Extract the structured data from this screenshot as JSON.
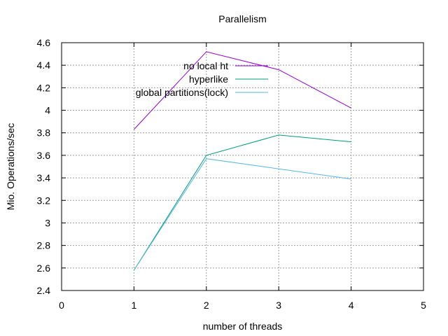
{
  "chart_data": {
    "type": "line",
    "title": "Parallelism",
    "xlabel": "number of threads",
    "ylabel": "Mio. Operations/sec",
    "xlim": [
      0,
      5
    ],
    "ylim": [
      2.4,
      4.6
    ],
    "xticks": [
      0,
      1,
      2,
      3,
      4,
      5
    ],
    "yticks": [
      2.4,
      2.6,
      2.8,
      3,
      3.2,
      3.4,
      3.6,
      3.8,
      4,
      4.2,
      4.4,
      4.6
    ],
    "xtick_labels": [
      "0",
      "1",
      "2",
      "3",
      "4",
      "5"
    ],
    "ytick_labels": [
      "2.4",
      "2.6",
      "2.8",
      "3",
      "3.2",
      "3.4",
      "3.6",
      "3.8",
      "4",
      "4.2",
      "4.4",
      "4.6"
    ],
    "grid": true,
    "legend_position": "top-center",
    "series": [
      {
        "name": "no local ht",
        "color": "#9400d3",
        "x": [
          1,
          2,
          3,
          4
        ],
        "y": [
          3.83,
          4.52,
          4.36,
          4.02
        ]
      },
      {
        "name": "hyperlike",
        "color": "#009e73",
        "x": [
          1,
          2,
          3,
          4
        ],
        "y": [
          2.58,
          3.6,
          3.78,
          3.72
        ]
      },
      {
        "name": "global partitions(lock)",
        "color": "#56b4e9",
        "x": [
          1,
          2,
          3,
          4
        ],
        "y": [
          2.58,
          3.57,
          3.48,
          3.39
        ]
      }
    ]
  }
}
